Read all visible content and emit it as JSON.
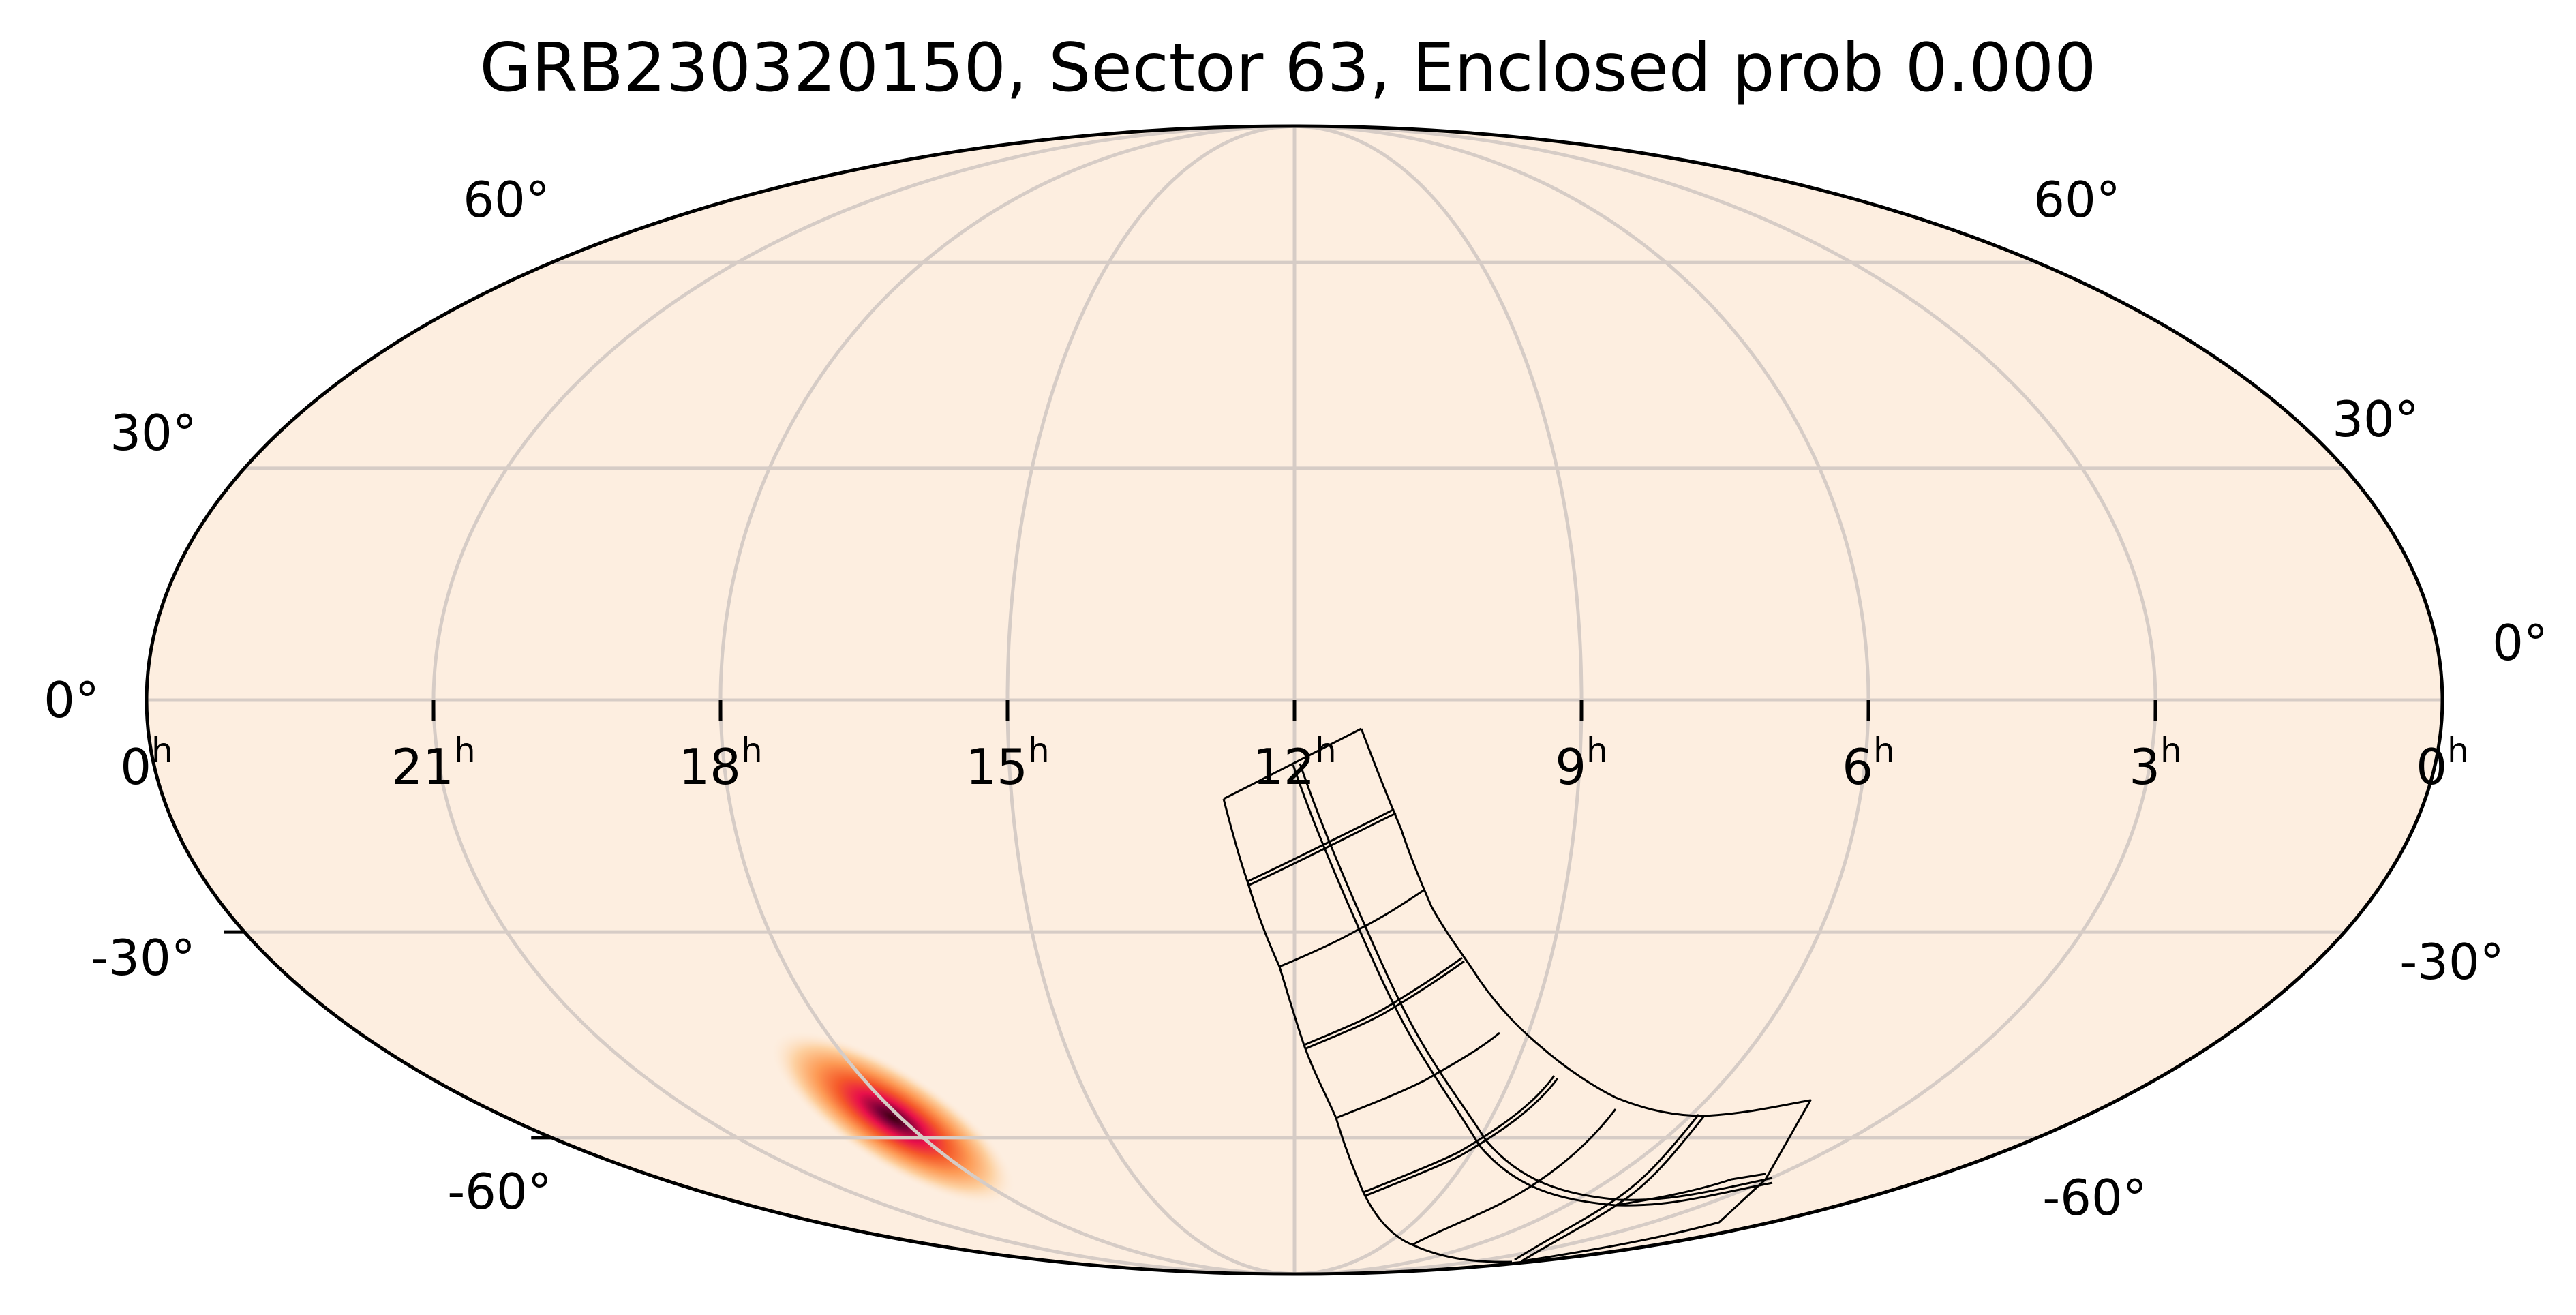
{
  "chart_data": {
    "type": "heatmap",
    "projection": "mollweide",
    "title": "GRB230320150, Sector 63, Enclosed prob 0.000",
    "xlabel": "",
    "ylabel": "",
    "grid": true,
    "x_axis": {
      "quantity": "Right Ascension",
      "direction": "increasing to the left",
      "tick_labels": [
        "0h",
        "21h",
        "18h",
        "15h",
        "12h",
        "9h",
        "6h",
        "3h",
        "0h"
      ],
      "tick_hours": [
        24,
        21,
        18,
        15,
        12,
        9,
        6,
        3,
        0
      ]
    },
    "y_axis": {
      "quantity": "Declination",
      "tick_labels": [
        "60°",
        "30°",
        "0°",
        "-30°",
        "-60°"
      ],
      "tick_degrees": [
        60,
        30,
        0,
        -30,
        -60
      ]
    },
    "background_color": "#fdeee0",
    "grid_color": "#d6ccc6",
    "probability_map": {
      "description": "GRB localization probability blob",
      "peak_ra_hours": 16.7,
      "peak_dec_deg": -55,
      "colormap": [
        "#fdeee0",
        "#fdd0a0",
        "#fd9a55",
        "#f55a2a",
        "#e8104a",
        "#a00040",
        "#3a0010"
      ]
    },
    "tess_footprint": {
      "sector": 63,
      "layout": "4 cameras x 2x2 CCDs (2 columns x 8 rows of chips)",
      "approx_ra_range_hours": [
        5.5,
        12.0
      ],
      "approx_dec_range_deg": [
        -90,
        -2
      ]
    },
    "enclosed_probability": 0.0
  },
  "labels": {
    "title": "GRB230320150, Sector 63, Enclosed prob 0.000",
    "ra": [
      {
        "num": "0",
        "sup": "h"
      },
      {
        "num": "21",
        "sup": "h"
      },
      {
        "num": "18",
        "sup": "h"
      },
      {
        "num": "15",
        "sup": "h"
      },
      {
        "num": "12",
        "sup": "h"
      },
      {
        "num": "9",
        "sup": "h"
      },
      {
        "num": "6",
        "sup": "h"
      },
      {
        "num": "3",
        "sup": "h"
      },
      {
        "num": "0",
        "sup": "h"
      }
    ],
    "dec_left": [
      "60°",
      "30°",
      "0°",
      "-30°",
      "-60°"
    ],
    "dec_right": [
      "60°",
      "30°",
      "0°",
      "-30°",
      "-60°"
    ]
  }
}
